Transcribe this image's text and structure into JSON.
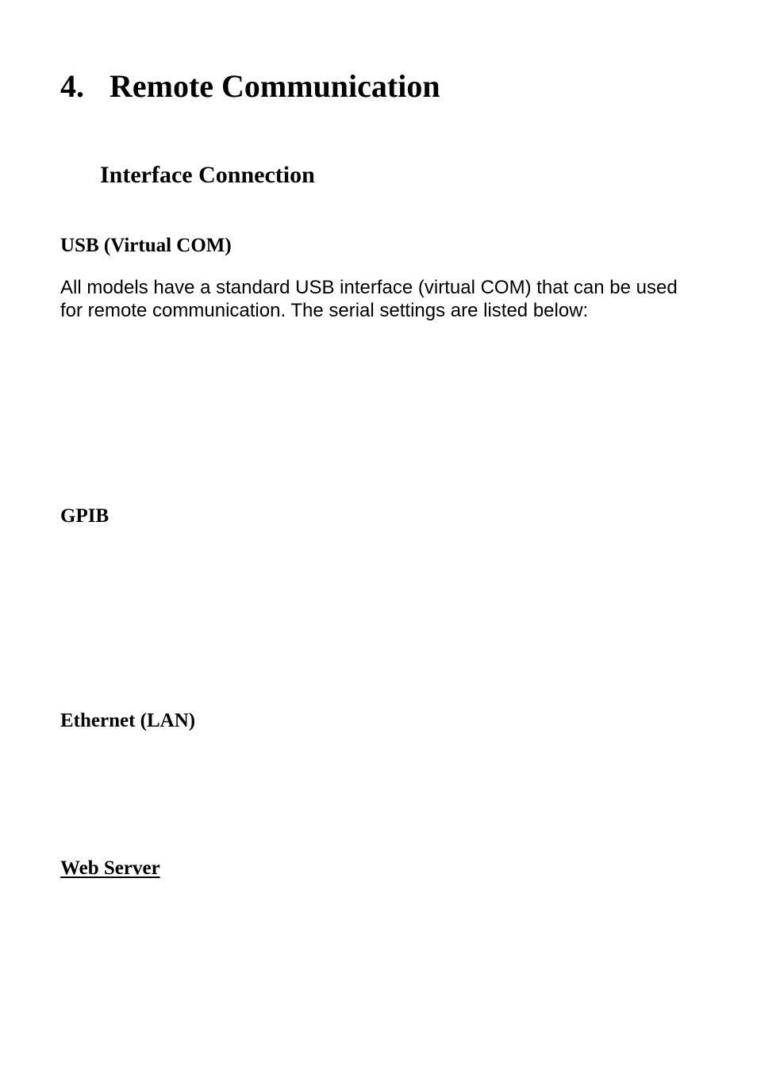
{
  "chapter": {
    "number": "4.",
    "title": "Remote Communication"
  },
  "section": {
    "title": "Interface Connection"
  },
  "usb": {
    "heading": "USB (Virtual COM)",
    "body": "All models have a standard USB interface (virtual COM) that can be used for remote communication. The serial settings are listed below:"
  },
  "gpib": {
    "heading": "GPIB"
  },
  "ethernet": {
    "heading": "Ethernet (LAN)"
  },
  "webserver": {
    "heading": "Web Server"
  },
  "colors": {
    "background": "#ffffff",
    "text": "#000000"
  },
  "fonts": {
    "serif": "Times New Roman",
    "sans": "Arial",
    "chapter_size_pt": 30,
    "section_size_pt": 22,
    "subsection_size_pt": 19,
    "body_size_pt": 18
  }
}
